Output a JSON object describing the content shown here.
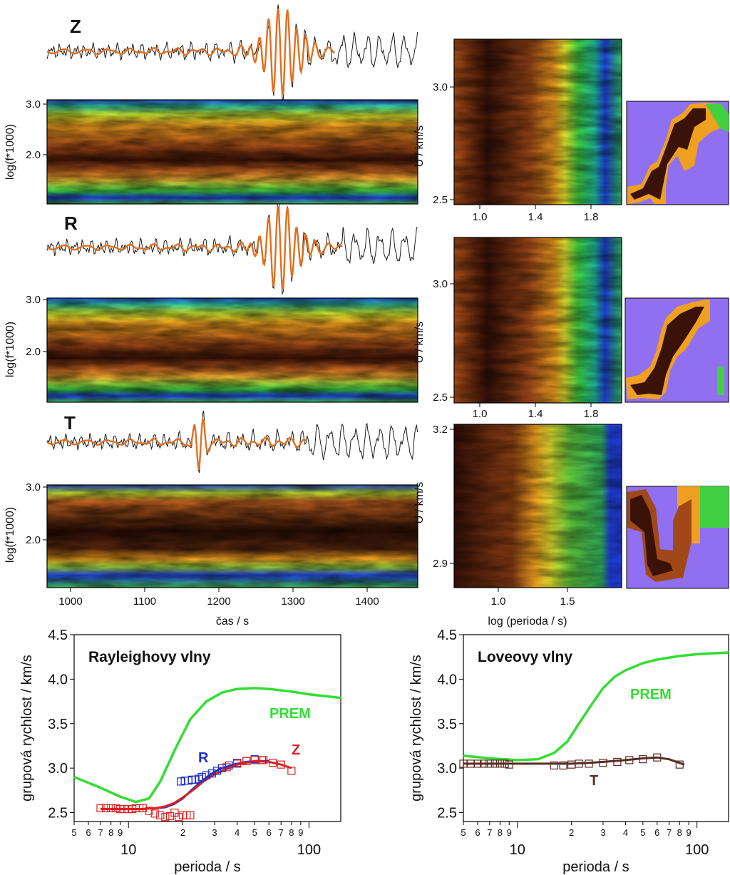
{
  "colors": {
    "trace": "#1a1a1a",
    "filtered": "#e07020",
    "prem": "#33dd33",
    "r": "#2030c0",
    "z": "#dd2020",
    "t": "#5a2a22",
    "nodata": "#9070f0"
  },
  "panels": [
    {
      "component": "Z"
    },
    {
      "component": "R"
    },
    {
      "component": "T"
    }
  ],
  "spectrogram_axes": {
    "ylabel": "log(f*1000)",
    "yticks": [
      "3.0",
      "2.0"
    ],
    "xlabel": "čas / s",
    "xticks": [
      "1000",
      "1100",
      "1200",
      "1300",
      "1400"
    ]
  },
  "velocity_axes": {
    "ylabel": "U / km/s",
    "rz_yticks": [
      "3.0",
      "2.5"
    ],
    "rz_xticks": [
      "1.0",
      "1.4",
      "1.8"
    ],
    "t_yticks": [
      "3.2",
      "2.9"
    ],
    "t_xticks": [
      "1.0",
      "1.5"
    ],
    "xlabel": "log (perioda / s)"
  },
  "chart_data": [
    {
      "type": "line",
      "title": "Rayleighovy vlny",
      "xlabel": "perioda / s",
      "ylabel": "grupová rychlost / km/s",
      "xscale": "log",
      "xlim": [
        5,
        150
      ],
      "ylim": [
        2.4,
        4.5
      ],
      "yticks": [
        "2.5",
        "3.0",
        "3.5",
        "4.0",
        "4.5"
      ],
      "xticks_minor": [
        "5",
        "6",
        "7",
        "8",
        "9",
        "2",
        "3",
        "4",
        "5",
        "6",
        "7",
        "8",
        "9"
      ],
      "xticks_major": [
        "10",
        "100"
      ],
      "series": [
        {
          "name": "PREM",
          "x": [
            5,
            7,
            9,
            11,
            13,
            15,
            18,
            22,
            27,
            33,
            40,
            50,
            60,
            80,
            100,
            150
          ],
          "y": [
            2.9,
            2.78,
            2.68,
            2.62,
            2.66,
            2.85,
            3.2,
            3.55,
            3.75,
            3.85,
            3.89,
            3.9,
            3.89,
            3.86,
            3.83,
            3.79
          ]
        },
        {
          "name": "R",
          "x": [
            14,
            16,
            18,
            20,
            22,
            25,
            28,
            32,
            38,
            45,
            52,
            60
          ],
          "y": [
            2.55,
            2.56,
            2.6,
            2.66,
            2.74,
            2.84,
            2.92,
            2.99,
            3.04,
            3.07,
            3.08,
            3.08
          ]
        },
        {
          "name": "Z",
          "x": [
            7,
            8,
            10,
            12,
            14,
            16,
            18,
            20,
            23,
            26,
            30,
            35,
            40,
            50,
            60,
            70,
            80
          ],
          "y": [
            2.54,
            2.54,
            2.54,
            2.54,
            2.55,
            2.57,
            2.61,
            2.67,
            2.76,
            2.85,
            2.93,
            2.99,
            3.04,
            3.08,
            3.07,
            3.04,
            3.0
          ]
        },
        {
          "name": "R-points",
          "x": [
            19.5,
            20.5,
            21.5,
            22.5,
            23.5,
            24.5,
            25.5,
            27,
            29,
            31,
            33,
            36,
            40,
            45,
            50,
            55
          ],
          "y": [
            2.85,
            2.86,
            2.86,
            2.87,
            2.87,
            2.88,
            2.9,
            2.92,
            2.94,
            2.97,
            3.0,
            3.03,
            3.06,
            3.08,
            3.1,
            3.09
          ]
        },
        {
          "name": "Z-points",
          "x": [
            7,
            7.5,
            8,
            8.5,
            9,
            9.5,
            10,
            10.5,
            11,
            11.5,
            12,
            13,
            14,
            15,
            16,
            17,
            18,
            19,
            20,
            21,
            22,
            35,
            40,
            45,
            50,
            56,
            63,
            70,
            80
          ],
          "y": [
            2.55,
            2.55,
            2.55,
            2.55,
            2.54,
            2.54,
            2.54,
            2.54,
            2.55,
            2.55,
            2.55,
            2.52,
            2.49,
            2.47,
            2.45,
            2.46,
            2.5,
            2.45,
            2.47,
            2.47,
            2.47,
            3.01,
            3.05,
            3.08,
            3.09,
            3.09,
            3.06,
            3.04,
            2.97
          ]
        }
      ]
    },
    {
      "type": "line",
      "title": "Loveovy vlny",
      "xlabel": "perioda / s",
      "ylabel": "grupová rychlost / km/s",
      "xscale": "log",
      "xlim": [
        5,
        150
      ],
      "ylim": [
        2.4,
        4.5
      ],
      "yticks": [
        "2.5",
        "3.0",
        "3.5",
        "4.0",
        "4.5"
      ],
      "xticks_minor": [
        "5",
        "6",
        "7",
        "8",
        "9",
        "2",
        "3",
        "4",
        "5",
        "6",
        "7",
        "8",
        "9"
      ],
      "xticks_major": [
        "10",
        "100"
      ],
      "series": [
        {
          "name": "PREM",
          "x": [
            5,
            7,
            10,
            13,
            16,
            19,
            22,
            26,
            30,
            35,
            40,
            50,
            60,
            80,
            100,
            150
          ],
          "y": [
            3.14,
            3.11,
            3.09,
            3.1,
            3.17,
            3.3,
            3.5,
            3.72,
            3.9,
            4.03,
            4.1,
            4.18,
            4.22,
            4.26,
            4.28,
            4.3
          ]
        },
        {
          "name": "T",
          "x": [
            5,
            8,
            12,
            16,
            20,
            25,
            30,
            40,
            50,
            60,
            70,
            85
          ],
          "y": [
            3.05,
            3.05,
            3.05,
            3.05,
            3.05,
            3.06,
            3.07,
            3.09,
            3.11,
            3.12,
            3.1,
            3.04
          ]
        },
        {
          "name": "T-points",
          "x": [
            5,
            5.5,
            6,
            6.5,
            7,
            7.5,
            8,
            8.5,
            9,
            16,
            18,
            20,
            22,
            25,
            30,
            36,
            42,
            50,
            60,
            80
          ],
          "y": [
            3.05,
            3.05,
            3.05,
            3.05,
            3.05,
            3.05,
            3.05,
            3.05,
            3.04,
            3.03,
            3.03,
            3.04,
            3.05,
            3.05,
            3.06,
            3.07,
            3.09,
            3.1,
            3.12,
            3.04
          ]
        }
      ]
    }
  ]
}
